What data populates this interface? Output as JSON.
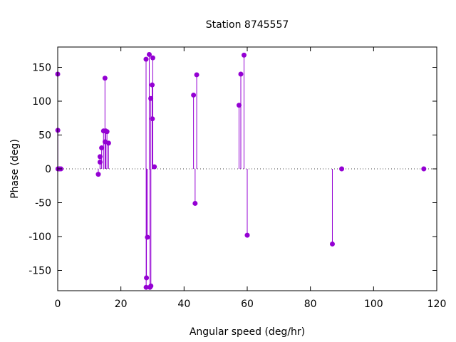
{
  "chart_data": {
    "type": "scatter",
    "style": "impulses-with-points",
    "title": "Station 8745557",
    "xlabel": "Angular speed (deg/hr)",
    "ylabel": "Phase (deg)",
    "xlim": [
      0,
      120
    ],
    "ylim": [
      -180,
      180
    ],
    "xticks": [
      0,
      20,
      40,
      60,
      80,
      100,
      120
    ],
    "yticks": [
      -150,
      -100,
      -50,
      0,
      50,
      100,
      150
    ],
    "xtick_labels": [
      "0",
      "20",
      "40",
      "60",
      "80",
      "100",
      "120"
    ],
    "ytick_labels": [
      "-150",
      "-100",
      "-50",
      "0",
      "50",
      "100",
      "150"
    ],
    "grid": false,
    "zero_line": true,
    "color": "#9400d3",
    "points": [
      {
        "x": 0.0,
        "y": 140
      },
      {
        "x": 0.04,
        "y": 57
      },
      {
        "x": 0.08,
        "y": 0
      },
      {
        "x": 0.5,
        "y": 0
      },
      {
        "x": 1.0,
        "y": 0
      },
      {
        "x": 12.85,
        "y": -8
      },
      {
        "x": 13.4,
        "y": 18
      },
      {
        "x": 13.4,
        "y": 10
      },
      {
        "x": 13.9,
        "y": 31
      },
      {
        "x": 14.5,
        "y": 56
      },
      {
        "x": 14.96,
        "y": 134
      },
      {
        "x": 15.0,
        "y": 40
      },
      {
        "x": 15.2,
        "y": 56
      },
      {
        "x": 15.6,
        "y": 55
      },
      {
        "x": 16.1,
        "y": 38
      },
      {
        "x": 27.97,
        "y": 162
      },
      {
        "x": 28.0,
        "y": -175
      },
      {
        "x": 28.1,
        "y": -161
      },
      {
        "x": 28.4,
        "y": -101
      },
      {
        "x": 28.98,
        "y": 169
      },
      {
        "x": 29.2,
        "y": -175
      },
      {
        "x": 29.46,
        "y": 104
      },
      {
        "x": 29.5,
        "y": -173
      },
      {
        "x": 29.96,
        "y": 74
      },
      {
        "x": 29.9,
        "y": 124
      },
      {
        "x": 30.1,
        "y": 164
      },
      {
        "x": 30.6,
        "y": 3
      },
      {
        "x": 43.0,
        "y": 109
      },
      {
        "x": 43.5,
        "y": -51
      },
      {
        "x": 44.0,
        "y": 139
      },
      {
        "x": 57.4,
        "y": 94
      },
      {
        "x": 57.97,
        "y": 140
      },
      {
        "x": 58.98,
        "y": 168
      },
      {
        "x": 60.0,
        "y": -98
      },
      {
        "x": 86.95,
        "y": -111
      },
      {
        "x": 89.9,
        "y": 0
      },
      {
        "x": 115.9,
        "y": 0
      }
    ]
  }
}
